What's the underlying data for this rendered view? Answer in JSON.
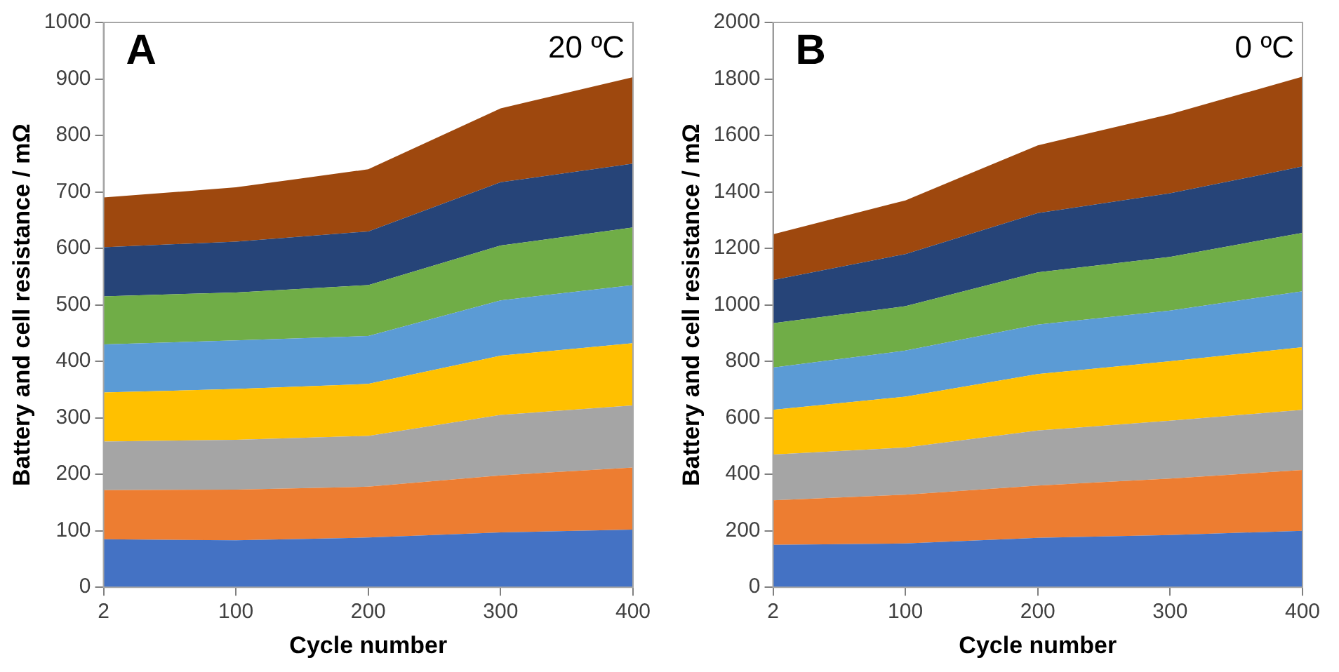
{
  "chart_data": [
    {
      "type": "area",
      "stacked": true,
      "annotations": [
        "A",
        "20 ºC"
      ],
      "xlabel": "Cycle number",
      "ylabel": "Battery and cell resistance / mΩ",
      "categories": [
        "2",
        "100",
        "200",
        "300",
        "400"
      ],
      "ylim": [
        0,
        1000
      ],
      "yticks": [
        0,
        100,
        200,
        300,
        400,
        500,
        600,
        700,
        800,
        900,
        1000
      ],
      "grid": false,
      "legend": false,
      "series": [
        {
          "color": "#4472c4",
          "values": [
            85,
            83,
            88,
            97,
            102
          ]
        },
        {
          "color": "#ed7d31",
          "values": [
            87,
            90,
            90,
            101,
            110
          ]
        },
        {
          "color": "#a5a5a5",
          "values": [
            86,
            88,
            90,
            107,
            110
          ]
        },
        {
          "color": "#ffc000",
          "values": [
            87,
            90,
            92,
            105,
            110
          ]
        },
        {
          "color": "#5b9bd5",
          "values": [
            85,
            86,
            85,
            98,
            103
          ]
        },
        {
          "color": "#70ad47",
          "values": [
            85,
            85,
            90,
            97,
            102
          ]
        },
        {
          "color": "#264478",
          "values": [
            87,
            90,
            95,
            112,
            113
          ]
        },
        {
          "color": "#9e480e",
          "values": [
            88,
            96,
            110,
            131,
            153
          ]
        }
      ]
    },
    {
      "type": "area",
      "stacked": true,
      "annotations": [
        "B",
        "0 ºC"
      ],
      "xlabel": "Cycle number",
      "ylabel": "Battery and cell resistance / mΩ",
      "categories": [
        "2",
        "100",
        "200",
        "300",
        "400"
      ],
      "ylim": [
        0,
        2000
      ],
      "yticks": [
        0,
        200,
        400,
        600,
        800,
        1000,
        1200,
        1400,
        1600,
        1800,
        2000
      ],
      "grid": false,
      "legend": false,
      "series": [
        {
          "color": "#4472c4",
          "values": [
            150,
            155,
            175,
            185,
            200
          ]
        },
        {
          "color": "#ed7d31",
          "values": [
            158,
            173,
            185,
            200,
            215
          ]
        },
        {
          "color": "#a5a5a5",
          "values": [
            162,
            167,
            195,
            205,
            213
          ]
        },
        {
          "color": "#ffc000",
          "values": [
            158,
            180,
            200,
            210,
            222
          ]
        },
        {
          "color": "#5b9bd5",
          "values": [
            150,
            163,
            175,
            180,
            198
          ]
        },
        {
          "color": "#70ad47",
          "values": [
            157,
            157,
            185,
            190,
            207
          ]
        },
        {
          "color": "#264478",
          "values": [
            153,
            185,
            210,
            225,
            235
          ]
        },
        {
          "color": "#9e480e",
          "values": [
            162,
            190,
            240,
            280,
            318
          ]
        }
      ]
    }
  ]
}
